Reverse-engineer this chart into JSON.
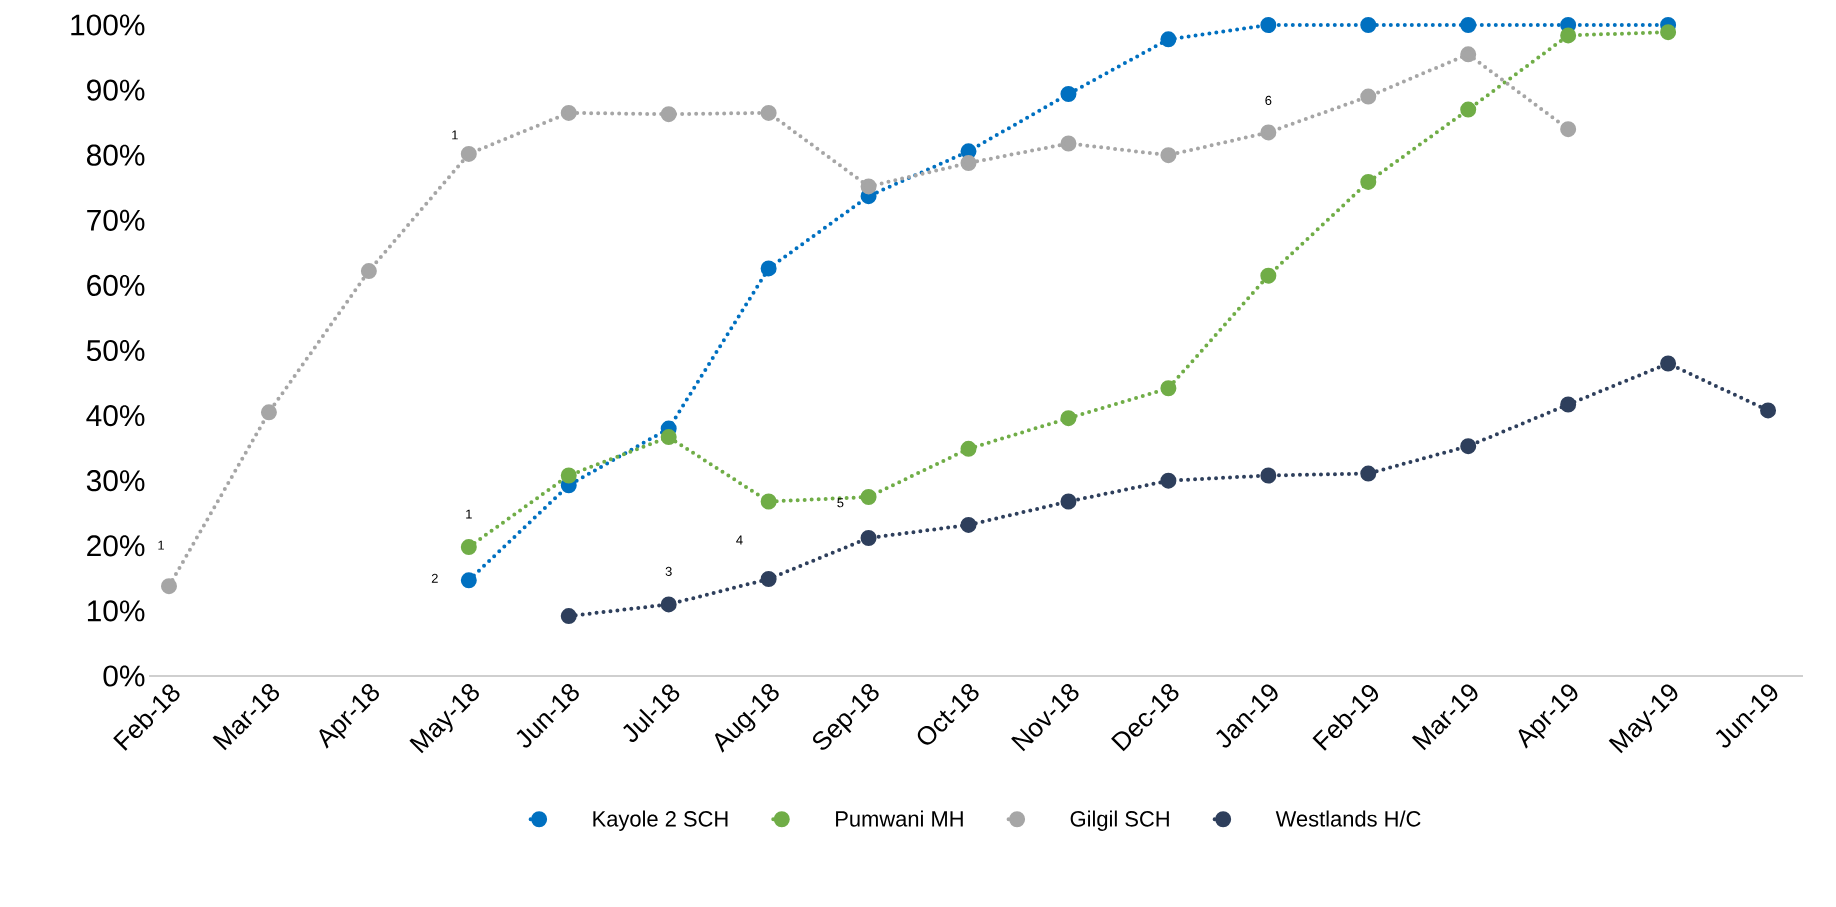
{
  "chart_data": {
    "type": "line",
    "categories": [
      "Feb-18",
      "Mar-18",
      "Apr-18",
      "May-18",
      "Jun-18",
      "Jul-18",
      "Aug-18",
      "Sep-18",
      "Oct-18",
      "Nov-18",
      "Dec-18",
      "Jan-19",
      "Feb-19",
      "Mar-19",
      "Apr-19",
      "May-19",
      "Jun-19"
    ],
    "series": [
      {
        "name": "Kayole 2 SCH",
        "color": "#0070c0",
        "values": [
          null,
          null,
          null,
          14.7,
          29.3,
          38,
          62.6,
          73.7,
          80.6,
          89.4,
          97.8,
          100,
          100,
          100,
          100,
          100,
          null
        ]
      },
      {
        "name": "Pumwani MH",
        "color": "#70ad47",
        "values": [
          null,
          null,
          null,
          19.8,
          30.8,
          36.7,
          26.8,
          27.5,
          34.9,
          39.6,
          44.2,
          61.5,
          75.9,
          87,
          98.4,
          98.9,
          null
        ]
      },
      {
        "name": "Gilgil SCH",
        "color": "#a6a6a6",
        "values": [
          13.8,
          40.5,
          62.2,
          80.2,
          86.5,
          86.3,
          86.5,
          75.2,
          78.8,
          81.8,
          80,
          83.5,
          89,
          95.5,
          84,
          null,
          null
        ]
      },
      {
        "name": "Westlands H/C",
        "color": "#2e3f5c",
        "values": [
          null,
          null,
          null,
          null,
          9.2,
          11,
          14.9,
          21.2,
          23.2,
          26.8,
          30,
          30.8,
          31.1,
          35.3,
          41.7,
          48,
          40.8
        ]
      }
    ],
    "ylim": [
      0,
      100
    ],
    "yticks": [
      {
        "value": 0,
        "label": "0%"
      },
      {
        "value": 10,
        "label": "10%"
      },
      {
        "value": 20,
        "label": "20%"
      },
      {
        "value": 30,
        "label": "30%"
      },
      {
        "value": 40,
        "label": "40%"
      },
      {
        "value": 50,
        "label": "50%"
      },
      {
        "value": 60,
        "label": "60%"
      },
      {
        "value": 70,
        "label": "70%"
      },
      {
        "value": 80,
        "label": "80%"
      },
      {
        "value": 90,
        "label": "90%"
      },
      {
        "value": 100,
        "label": "100%"
      }
    ],
    "annotations": [
      {
        "text": "1",
        "x": "Feb-18",
        "y": 13.8
      },
      {
        "text": "1",
        "x": "May-18",
        "y": 80.2
      },
      {
        "text": "2",
        "x": "May-18",
        "y": 14.7
      },
      {
        "text": "1",
        "x": "May-18",
        "y": 19.8
      },
      {
        "text": "3",
        "x": "Jul-18",
        "y": 11
      },
      "4",
      "5",
      {
        "text": "6",
        "x": "Jan-19",
        "y": 83.5
      }
    ],
    "grid": false,
    "legend": "bottom",
    "marker": "circle",
    "line_style": "dotted"
  }
}
